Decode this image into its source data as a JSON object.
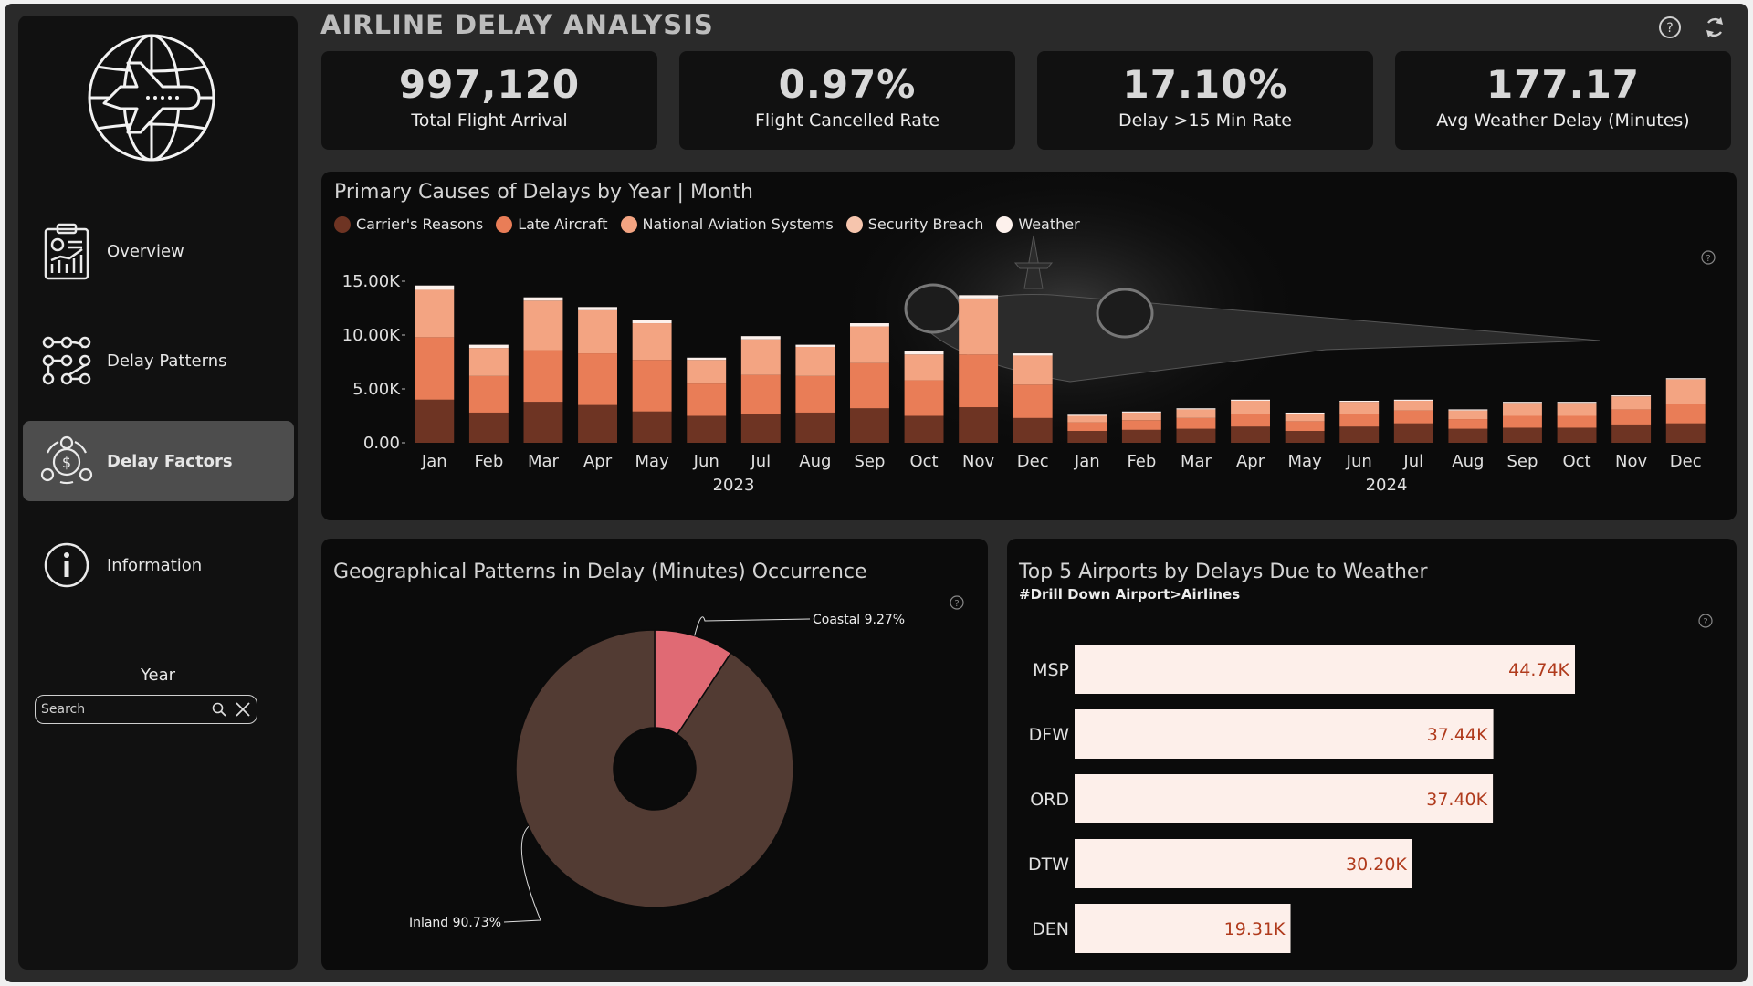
{
  "header": {
    "title": "AIRLINE DELAY ANALYSIS"
  },
  "sidebar": {
    "items": [
      {
        "label": "Overview",
        "icon": "report-chart-icon"
      },
      {
        "label": "Delay Patterns",
        "icon": "network-pattern-icon"
      },
      {
        "label": "Delay Factors",
        "icon": "gear-factors-icon",
        "active": true
      },
      {
        "label": "Information",
        "icon": "info-icon"
      }
    ],
    "year_label": "Year",
    "search_placeholder": "Search"
  },
  "kpis": [
    {
      "value": "997,120",
      "label": "Total Flight Arrival"
    },
    {
      "value": "0.97%",
      "label": "Flight Cancelled Rate"
    },
    {
      "value": "17.10%",
      "label": "Delay >15 Min Rate"
    },
    {
      "value": "177.17",
      "label": "Avg Weather Delay (Minutes)"
    }
  ],
  "colors": {
    "carrier": "#6e3423",
    "late_aircraft": "#e97d57",
    "nas": "#f3a482",
    "security": "#f6c5ad",
    "weather": "#fdf1ec",
    "coastal": "#e06a74",
    "inland": "#523b33",
    "bar_fill": "#fdefea",
    "bar_value": "#b03a1c"
  },
  "chart_data": [
    {
      "type": "bar",
      "stacked": true,
      "title": "Primary Causes of Delays by Year | Month",
      "legend": [
        "Carrier's Reasons",
        "Late Aircraft",
        "National Aviation Systems",
        "Security Breach",
        "Weather"
      ],
      "legend_position": "top-left",
      "categories": [
        "Jan",
        "Feb",
        "Mar",
        "Apr",
        "May",
        "Jun",
        "Jul",
        "Aug",
        "Sep",
        "Oct",
        "Nov",
        "Dec",
        "Jan",
        "Feb",
        "Mar",
        "Apr",
        "May",
        "Jun",
        "Jul",
        "Aug",
        "Sep",
        "Oct",
        "Nov",
        "Dec"
      ],
      "groups": [
        {
          "label": "2023",
          "count": 12
        },
        {
          "label": "2024",
          "count": 12
        }
      ],
      "ylim": [
        0,
        15000
      ],
      "yticks": [
        "0.00",
        "5.00K",
        "10.00K",
        "15.00K"
      ],
      "series": [
        {
          "name": "Carrier's Reasons",
          "values": [
            4000,
            2800,
            3800,
            3500,
            2900,
            2500,
            2700,
            2800,
            3200,
            2500,
            3300,
            2300,
            1100,
            1200,
            1300,
            1500,
            1100,
            1500,
            1800,
            1300,
            1400,
            1400,
            1700,
            1800
          ]
        },
        {
          "name": "Late Aircraft",
          "values": [
            5800,
            3400,
            4800,
            4800,
            4800,
            3000,
            3600,
            3400,
            4200,
            3300,
            4900,
            3100,
            800,
            900,
            1000,
            1200,
            900,
            1200,
            1200,
            900,
            1100,
            1100,
            1400,
            1800
          ]
        },
        {
          "name": "National Aviation Systems",
          "values": [
            4400,
            2600,
            4600,
            4000,
            3400,
            2200,
            3300,
            2700,
            3400,
            2400,
            5200,
            2700,
            600,
            700,
            800,
            1200,
            700,
            1100,
            900,
            800,
            1200,
            1200,
            1200,
            2300
          ]
        },
        {
          "name": "Security Breach",
          "values": [
            0,
            0,
            0,
            0,
            0,
            0,
            0,
            0,
            0,
            0,
            0,
            0,
            0,
            0,
            0,
            0,
            0,
            0,
            0,
            0,
            0,
            0,
            0,
            0
          ]
        },
        {
          "name": "Weather",
          "values": [
            400,
            300,
            300,
            300,
            300,
            200,
            300,
            200,
            300,
            300,
            300,
            200,
            100,
            100,
            100,
            100,
            100,
            100,
            100,
            100,
            100,
            100,
            100,
            100
          ]
        }
      ]
    },
    {
      "type": "pie",
      "donut": true,
      "title": "Geographical Patterns in Delay (Minutes) Occurrence",
      "slices": [
        {
          "name": "Coastal",
          "value": 9.27,
          "label": "Coastal 9.27%"
        },
        {
          "name": "Inland",
          "value": 90.73,
          "label": "Inland 90.73%"
        }
      ]
    },
    {
      "type": "bar",
      "orientation": "horizontal",
      "title": "Top 5 Airports by Delays Due to Weather",
      "subtitle": "#Drill Down Airport>Airlines",
      "categories": [
        "MSP",
        "DFW",
        "ORD",
        "DTW",
        "DEN"
      ],
      "values": [
        44740,
        37440,
        37400,
        30200,
        19310
      ],
      "labels": [
        "44.74K",
        "37.44K",
        "37.40K",
        "30.20K",
        "19.31K"
      ]
    }
  ]
}
